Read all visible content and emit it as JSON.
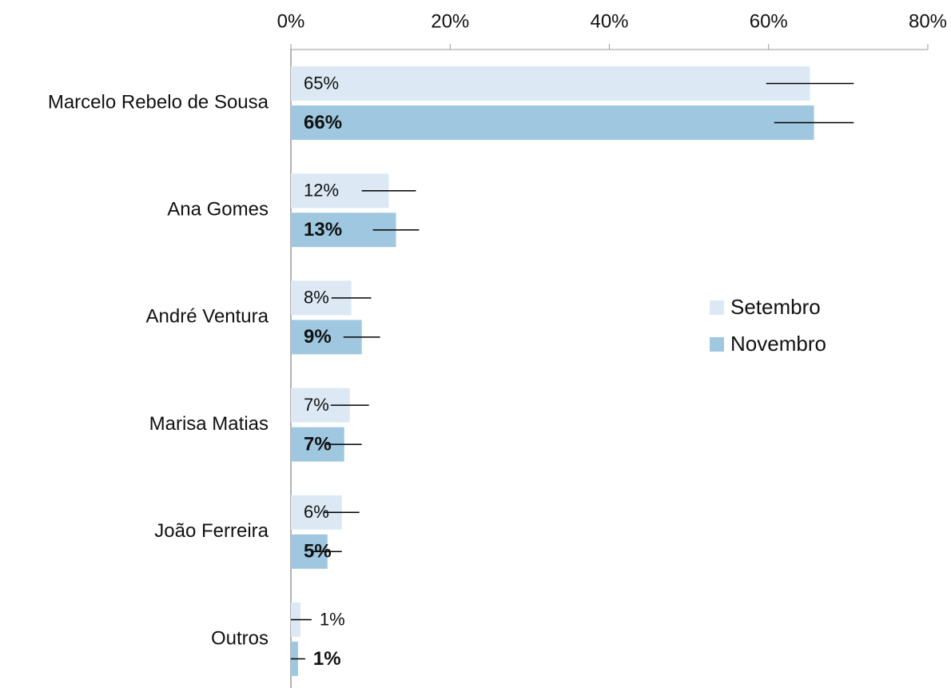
{
  "chart_data": {
    "type": "hbar",
    "categories": [
      "Marcelo Rebelo de Sousa",
      "Ana Gomes",
      "André Ventura",
      "Marisa Matias",
      "João Ferreira",
      "Outros"
    ],
    "series": [
      {
        "name": "Setembro",
        "color": "#dce9f4",
        "values": [
          65.2,
          12.3,
          7.6,
          7.4,
          6.4,
          1.2
        ],
        "errors": [
          5.5,
          3.4,
          2.5,
          2.4,
          2.2,
          1.4
        ],
        "value_labels": [
          "65%",
          "12%",
          "8%",
          "7%",
          "6%",
          "1%"
        ]
      },
      {
        "name": "Novembro",
        "color": "#9fc8e0",
        "values": [
          65.7,
          13.2,
          8.9,
          6.7,
          4.6,
          0.9
        ],
        "errors": [
          5.0,
          2.9,
          2.3,
          2.2,
          1.8,
          0.9
        ],
        "value_labels": [
          "66%",
          "13%",
          "9%",
          "7%",
          "5%",
          "1%"
        ]
      }
    ],
    "xlim": [
      0,
      80
    ],
    "xticks": [
      {
        "value": 0,
        "label": "0%"
      },
      {
        "value": 20,
        "label": "20%"
      },
      {
        "value": 40,
        "label": "40%"
      },
      {
        "value": 60,
        "label": "60%"
      },
      {
        "value": 80,
        "label": "80%"
      }
    ],
    "legend": "right"
  }
}
